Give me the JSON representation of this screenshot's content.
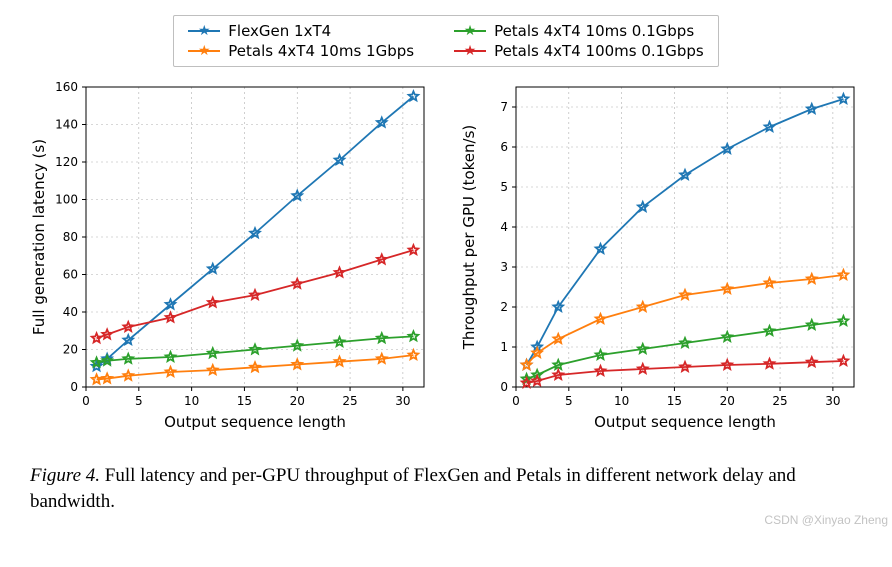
{
  "legend": [
    {
      "label": "FlexGen 1xT4",
      "color": "#1f77b4"
    },
    {
      "label": "Petals 4xT4 10ms 0.1Gbps",
      "color": "#2ca02c"
    },
    {
      "label": "Petals 4xT4 10ms 1Gbps",
      "color": "#ff7f0e"
    },
    {
      "label": "Petals 4xT4 100ms 0.1Gbps",
      "color": "#d62728"
    }
  ],
  "left_chart": {
    "type": "line",
    "xlabel": "Output sequence length",
    "ylabel": "Full generation latency (s)",
    "xlim": [
      0,
      32
    ],
    "ylim": [
      0,
      160
    ],
    "xticks": [
      0,
      5,
      10,
      15,
      20,
      25,
      30
    ],
    "yticks": [
      0,
      20,
      40,
      60,
      80,
      100,
      120,
      140,
      160
    ],
    "x": [
      1,
      2,
      4,
      8,
      12,
      16,
      20,
      24,
      28,
      31
    ],
    "grid_color": "#b0b0b0",
    "series": [
      {
        "key": "flexgen",
        "color": "#1f77b4",
        "y": [
          11,
          15,
          25,
          44,
          63,
          82,
          102,
          121,
          141,
          155
        ]
      },
      {
        "key": "petals_10ms_1g",
        "color": "#ff7f0e",
        "y": [
          4,
          4.5,
          6,
          8,
          9,
          10.5,
          12,
          13.5,
          15,
          17
        ]
      },
      {
        "key": "petals_10ms_01g",
        "color": "#2ca02c",
        "y": [
          13,
          14,
          15,
          16,
          18,
          20,
          22,
          24,
          26,
          27
        ]
      },
      {
        "key": "petals_100ms_01g",
        "color": "#d62728",
        "y": [
          26,
          28,
          32,
          37,
          45,
          49,
          55,
          61,
          68,
          73
        ]
      }
    ]
  },
  "right_chart": {
    "type": "line",
    "xlabel": "Output sequence length",
    "ylabel": "Throughput per GPU (token/s)",
    "xlim": [
      0,
      32
    ],
    "ylim": [
      0,
      7.5
    ],
    "xticks": [
      0,
      5,
      10,
      15,
      20,
      25,
      30
    ],
    "yticks": [
      0,
      1,
      2,
      3,
      4,
      5,
      6,
      7
    ],
    "x": [
      1,
      2,
      4,
      8,
      12,
      16,
      20,
      24,
      28,
      31
    ],
    "grid_color": "#b0b0b0",
    "series": [
      {
        "key": "flexgen",
        "color": "#1f77b4",
        "y": [
          0.55,
          1.0,
          2.0,
          3.45,
          4.5,
          5.3,
          5.95,
          6.5,
          6.95,
          7.2
        ]
      },
      {
        "key": "petals_10ms_1g",
        "color": "#ff7f0e",
        "y": [
          0.55,
          0.85,
          1.2,
          1.7,
          2.0,
          2.3,
          2.45,
          2.6,
          2.7,
          2.8
        ]
      },
      {
        "key": "petals_10ms_01g",
        "color": "#2ca02c",
        "y": [
          0.2,
          0.3,
          0.55,
          0.8,
          0.95,
          1.1,
          1.25,
          1.4,
          1.55,
          1.65
        ]
      },
      {
        "key": "petals_100ms_01g",
        "color": "#d62728",
        "y": [
          0.1,
          0.15,
          0.3,
          0.4,
          0.45,
          0.5,
          0.55,
          0.58,
          0.62,
          0.65
        ]
      }
    ]
  },
  "caption_prefix": "Figure 4.",
  "caption_text": " Full latency and per-GPU throughput of FlexGen and Petals in different network delay and bandwidth.",
  "watermark": "CSDN @Xinyao Zheng",
  "label_fontsize": 15,
  "tick_fontsize": 12,
  "marker": "star",
  "background_color": "#ffffff"
}
